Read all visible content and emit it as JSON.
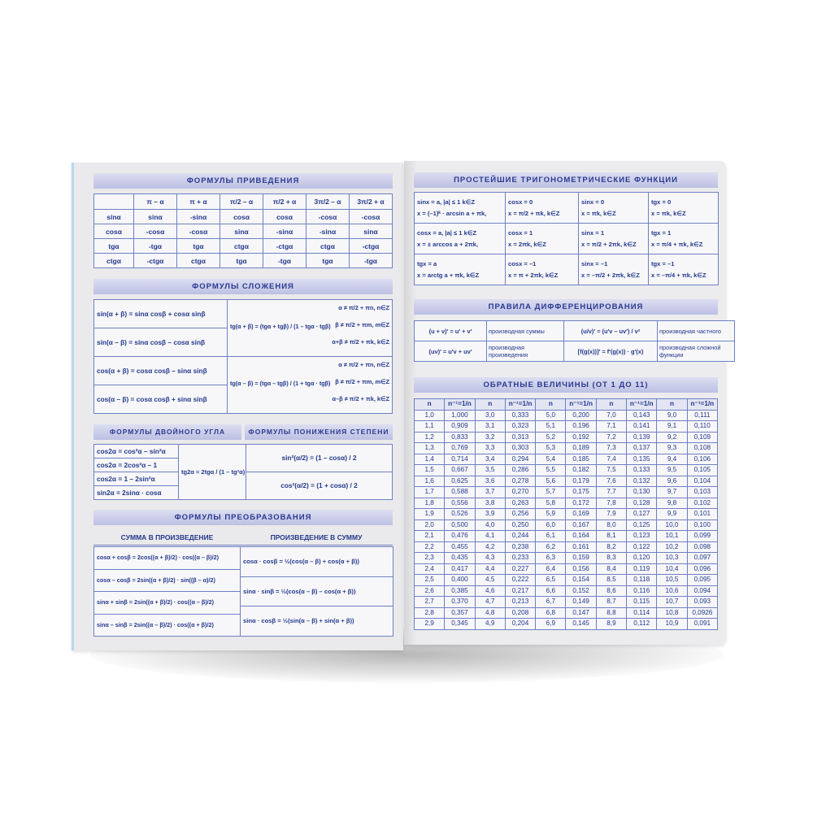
{
  "left_page": {
    "reduction": {
      "title": "ФОРМУЛЫ ПРИВЕДЕНИЯ",
      "header": [
        "π – α",
        "π + α",
        "π/2 – α",
        "π/2 + α",
        "3π/2 – α",
        "3π/2 + α"
      ],
      "rows": [
        [
          "sinα",
          "sinα",
          "-sinα",
          "cosα",
          "cosα",
          "-cosα",
          "-cosα"
        ],
        [
          "cosα",
          "-cosα",
          "-cosα",
          "sinα",
          "-sinα",
          "-sinα",
          "sinα"
        ],
        [
          "tgα",
          "-tgα",
          "tgα",
          "ctgα",
          "-ctgα",
          "ctgα",
          "-ctgα"
        ],
        [
          "ctgα",
          "-ctgα",
          "ctgα",
          "tgα",
          "-tgα",
          "tgα",
          "-tgα"
        ]
      ]
    },
    "addition": {
      "title": "ФОРМУЛЫ СЛОЖЕНИЯ",
      "formulas": [
        "sin(α + β) = sinα cosβ + cosα sinβ",
        "sin(α – β) = sinα cosβ – cosα sinβ",
        "cos(α + β) = cosα cosβ – sinα sinβ",
        "cos(α – β) = cosα cosβ + sinα sinβ"
      ],
      "tangent": [
        {
          "formula": "tg(α + β) = (tgα + tgβ) / (1 – tgα · tgβ)",
          "conditions": [
            "α ≠ π/2 + πn,   n∈Z",
            "β ≠ π/2 + πm,   m∈Z",
            "α+β ≠ π/2 + πk, k∈Z"
          ]
        },
        {
          "formula": "tg(α – β) = (tgα – tgβ) / (1 + tgα · tgβ)",
          "conditions": [
            "α ≠ π/2 + πn,   n∈Z",
            "β ≠ π/2 + πm,   m∈Z",
            "α–β ≠ π/2 + πk, k∈Z"
          ]
        }
      ]
    },
    "double_angle": {
      "title": "ФОРМУЛЫ ДВОЙНОГО УГЛА",
      "formulas": [
        "cos2α = cos²α – sin²α",
        "cos2α = 2cos²α – 1",
        "cos2α = 1 – 2sin²α",
        "sin2α = 2sinα · cosα"
      ],
      "tangent": "tg2α = 2tgα / (1 – tg²α)"
    },
    "power_reduction": {
      "title": "ФОРМУЛЫ ПОНИЖЕНИЯ СТЕПЕНИ",
      "formulas": [
        "sin²(α/2) = (1 – cosα) / 2",
        "cos²(α/2) = (1 + cosα) / 2"
      ]
    },
    "transformation": {
      "title": "ФОРМУЛЫ ПРЕОБРАЗОВАНИЯ",
      "sum_to_product": {
        "title": "СУММА В ПРОИЗВЕДЕНИЕ",
        "formulas": [
          "cosα + cosβ = 2cos((α + β)/2) · cos((α – β)/2)",
          "cosα – cosβ = 2sin((α + β)/2) · sin((β – α)/2)",
          "sinα + sinβ = 2sin((α + β)/2) · cos((α – β)/2)",
          "sinα – sinβ = 2sin((α – β)/2) · cos((α + β)/2)"
        ]
      },
      "product_to_sum": {
        "title": "ПРОИЗВЕДЕНИЕ В СУММУ",
        "formulas": [
          "cosα · cosβ = ½(cos(α – β) + cos(α + β))",
          "sinα · sinβ = ½(cos(α – β) – cos(α + β))",
          "sinα · cosβ = ½(sin(α – β) + sin(α + β))"
        ]
      }
    }
  },
  "right_page": {
    "trig_equations": {
      "title": "ПРОСТЕЙШИЕ ТРИГОНОМЕТРИЧЕСКИЕ ФУНКЦИИ",
      "rows": [
        [
          [
            "sinx = a,  |a| ≤ 1   k∈Z",
            "x = (–1)ᵏ · arcsin a + πk,"
          ],
          [
            "cosx = 0",
            "x = π/2 + πk,   k∈Z"
          ],
          [
            "sinx = 0",
            "x = πk,   k∈Z"
          ],
          [
            "tgx = 0",
            "x = πk,   k∈Z"
          ]
        ],
        [
          [
            "cosx = a,  |a| ≤ 1   k∈Z",
            "x = ± arccos a + 2πk,"
          ],
          [
            "cosx = 1",
            "x = 2πk,   k∈Z"
          ],
          [
            "sinx = 1",
            "x = π/2 + 2πk,  k∈Z"
          ],
          [
            "tgx = 1",
            "x = π/4 + πk,  k∈Z"
          ]
        ],
        [
          [
            "tgx = a",
            "x = arctg a + πk,   k∈Z"
          ],
          [
            "cosx = –1",
            "x = π + 2πk,   k∈Z"
          ],
          [
            "sinx = –1",
            "x = –π/2 + 2πk,  k∈Z"
          ],
          [
            "tgx = –1",
            "x = –π/4 + πk,  k∈Z"
          ]
        ]
      ]
    },
    "differentiation": {
      "title": "ПРАВИЛА ДИФФЕРЕНЦИРОВАНИЯ",
      "rows": [
        [
          "(u + v)′ = u′ + v′",
          "производная суммы",
          "(u/v)′ = (u′v – uv′) / v²",
          "производная частного"
        ],
        [
          "(uv)′ = u′v + uv′",
          "производная произведения",
          "[f(g(x))]′ = f′(g(x)) · g′(x)",
          "производная сложной функции"
        ]
      ]
    },
    "reciprocals": {
      "title": "ОБРАТНЫЕ ВЕЛИЧИНЫ (ОТ 1 ДО 11)",
      "header": [
        "n",
        "n⁻¹=1/n",
        "n",
        "n⁻¹=1/n",
        "n",
        "n⁻¹=1/n",
        "n",
        "n⁻¹=1/n",
        "n",
        "n⁻¹=1/n"
      ],
      "rows": [
        [
          "1,0",
          "1,000",
          "3,0",
          "0,333",
          "5,0",
          "0,200",
          "7,0",
          "0,143",
          "9,0",
          "0,111"
        ],
        [
          "1,1",
          "0,909",
          "3,1",
          "0,323",
          "5,1",
          "0,196",
          "7,1",
          "0,141",
          "9,1",
          "0,110"
        ],
        [
          "1,2",
          "0,833",
          "3,2",
          "0,313",
          "5,2",
          "0,192",
          "7,2",
          "0,139",
          "9,2",
          "0,109"
        ],
        [
          "1,3",
          "0,769",
          "3,3",
          "0,303",
          "5,3",
          "0,189",
          "7,3",
          "0,137",
          "9,3",
          "0,108"
        ],
        [
          "1,4",
          "0,714",
          "3,4",
          "0,294",
          "5,4",
          "0,185",
          "7,4",
          "0,135",
          "9,4",
          "0,106"
        ],
        [
          "1,5",
          "0,667",
          "3,5",
          "0,286",
          "5,5",
          "0,182",
          "7,5",
          "0,133",
          "9,5",
          "0,105"
        ],
        [
          "1,6",
          "0,625",
          "3,6",
          "0,278",
          "5,6",
          "0,179",
          "7,6",
          "0,132",
          "9,6",
          "0,104"
        ],
        [
          "1,7",
          "0,588",
          "3,7",
          "0,270",
          "5,7",
          "0,175",
          "7,7",
          "0,130",
          "9,7",
          "0,103"
        ],
        [
          "1,8",
          "0,556",
          "3,8",
          "0,263",
          "5,8",
          "0,172",
          "7,8",
          "0,128",
          "9,8",
          "0,102"
        ],
        [
          "1,9",
          "0,526",
          "3,9",
          "0,256",
          "5,9",
          "0,169",
          "7,9",
          "0,127",
          "9,9",
          "0,101"
        ],
        [
          "2,0",
          "0,500",
          "4,0",
          "0,250",
          "6,0",
          "0,167",
          "8,0",
          "0,125",
          "10,0",
          "0,100"
        ],
        [
          "2,1",
          "0,476",
          "4,1",
          "0,244",
          "6,1",
          "0,164",
          "8,1",
          "0,123",
          "10,1",
          "0,099"
        ],
        [
          "2,2",
          "0,455",
          "4,2",
          "0,238",
          "6,2",
          "0,161",
          "8,2",
          "0,122",
          "10,2",
          "0,098"
        ],
        [
          "2,3",
          "0,435",
          "4,3",
          "0,233",
          "6,3",
          "0,159",
          "8,3",
          "0,120",
          "10,3",
          "0,097"
        ],
        [
          "2,4",
          "0,417",
          "4,4",
          "0,227",
          "6,4",
          "0,156",
          "8,4",
          "0,119",
          "10,4",
          "0,096"
        ],
        [
          "2,5",
          "0,400",
          "4,5",
          "0,222",
          "6,5",
          "0,154",
          "8,5",
          "0,118",
          "10,5",
          "0,095"
        ],
        [
          "2,6",
          "0,385",
          "4,6",
          "0,217",
          "6,6",
          "0,152",
          "8,6",
          "0,116",
          "10,6",
          "0,094"
        ],
        [
          "2,7",
          "0,370",
          "4,7",
          "0,213",
          "6,7",
          "0,149",
          "8,7",
          "0,115",
          "10,7",
          "0,093"
        ],
        [
          "2,8",
          "0,357",
          "4,8",
          "0,208",
          "6,8",
          "0,147",
          "8,8",
          "0,114",
          "10,8",
          "0,0926"
        ],
        [
          "2,9",
          "0,345",
          "4,9",
          "0,204",
          "6,9",
          "0,145",
          "8,9",
          "0,112",
          "10,9",
          "0,091"
        ]
      ]
    }
  }
}
